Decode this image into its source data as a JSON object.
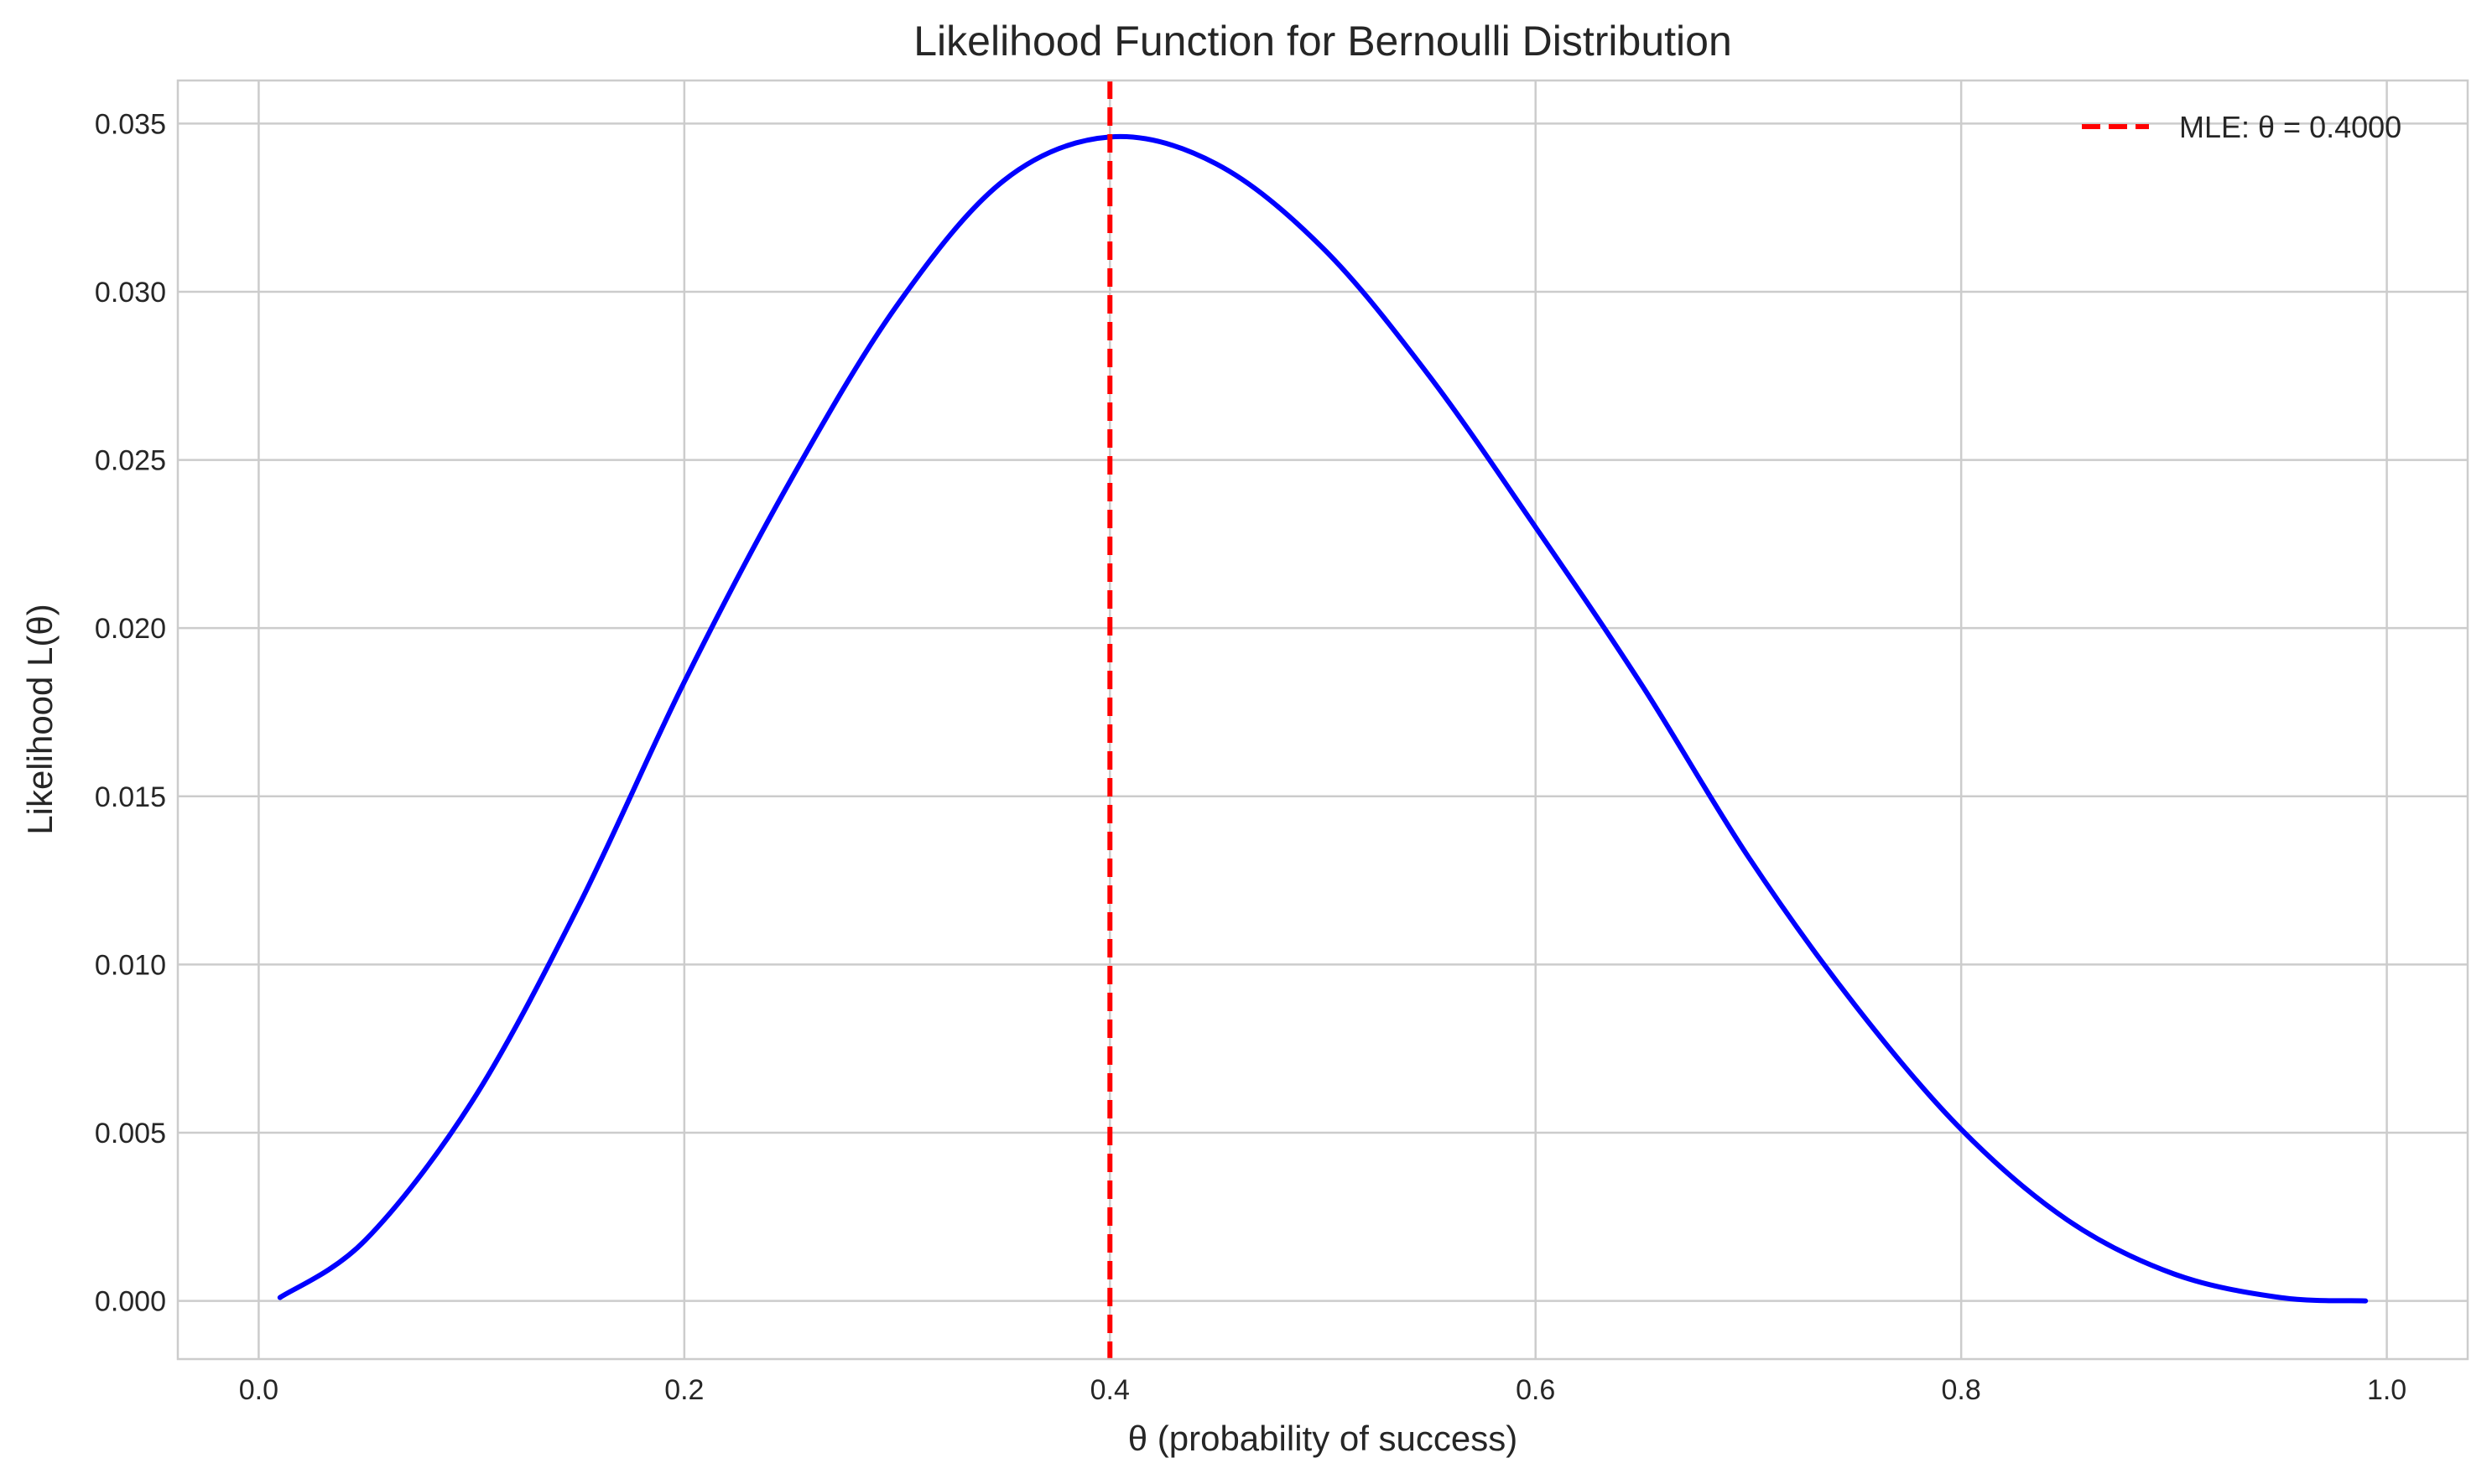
{
  "chart_data": {
    "type": "line",
    "title": "Likelihood Function for Bernoulli Distribution",
    "xlabel": "θ (probability of success)",
    "ylabel": "Likelihood L(θ)",
    "xlim": [
      -0.038,
      1.038
    ],
    "ylim": [
      -0.00173,
      0.03628
    ],
    "x_ticks": [
      0.0,
      0.2,
      0.4,
      0.6,
      0.8,
      1.0
    ],
    "x_tick_labels": [
      "0.0",
      "0.2",
      "0.4",
      "0.6",
      "0.8",
      "1.0"
    ],
    "y_ticks": [
      0.0,
      0.005,
      0.01,
      0.015,
      0.02,
      0.025,
      0.03,
      0.035
    ],
    "y_tick_labels": [
      "0.000",
      "0.005",
      "0.010",
      "0.015",
      "0.020",
      "0.025",
      "0.030",
      "0.035"
    ],
    "grid": true,
    "legend_position": "top-right",
    "series": [
      {
        "type": "line",
        "color": "#0000ff",
        "x": [
          0.01,
          0.05,
          0.1,
          0.15,
          0.2,
          0.25,
          0.3,
          0.35,
          0.4,
          0.45,
          0.5,
          0.55,
          0.6,
          0.65,
          0.7,
          0.75,
          0.8,
          0.85,
          0.9,
          0.95,
          0.99
        ],
        "values": [
          0.0001,
          0.0018,
          0.0059,
          0.0117,
          0.0184,
          0.0244,
          0.0296,
          0.0333,
          0.0346,
          0.0338,
          0.0313,
          0.0275,
          0.023,
          0.0183,
          0.0132,
          0.0088,
          0.0051,
          0.0024,
          0.0008,
          0.0001,
          0.0
        ]
      },
      {
        "type": "vline",
        "name": "MLE: θ = 0.4000",
        "x": 0.4,
        "color": "#ff0000",
        "dashed": true
      }
    ]
  }
}
